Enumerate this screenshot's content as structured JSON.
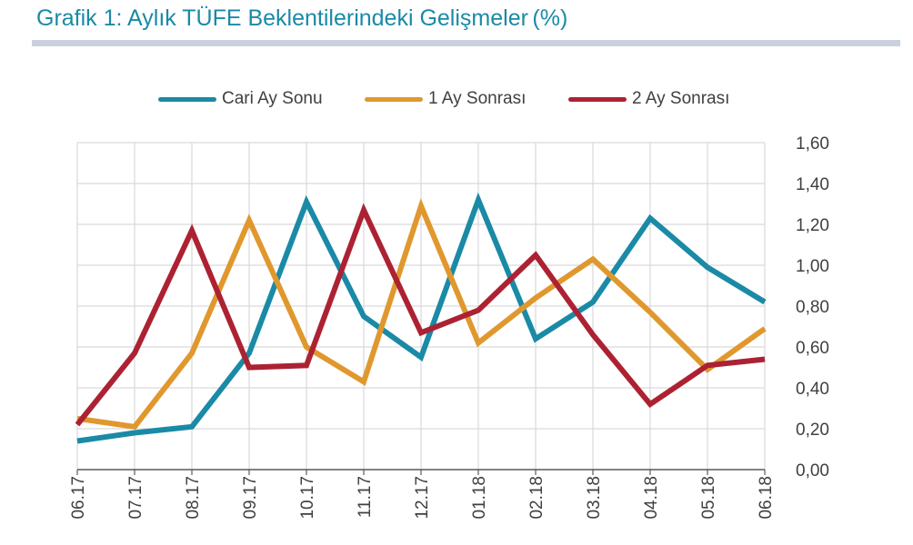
{
  "header": {
    "title_main": "Grafik 1: Aylık TÜFE Beklentilerindeki Gelişmeler",
    "title_unit": "(%)"
  },
  "chart_data": {
    "type": "line",
    "title": "Grafik 1: Aylık TÜFE Beklentilerindeki Gelişmeler (%)",
    "xlabel": "",
    "ylabel": "",
    "categories": [
      "06.17",
      "07.17",
      "08.17",
      "09.17",
      "10.17",
      "11.17",
      "12.17",
      "01.18",
      "02.18",
      "03.18",
      "04.18",
      "05.18",
      "06.18"
    ],
    "ylim": [
      0,
      1.6
    ],
    "yticks": [
      "0,00",
      "0,20",
      "0,40",
      "0,60",
      "0,80",
      "1,00",
      "1,20",
      "1,40",
      "1,60"
    ],
    "y_axis_side": "right",
    "grid": true,
    "legend_position": "top",
    "series": [
      {
        "name": "Cari Ay Sonu",
        "color": "#1a8aa6",
        "values": [
          0.14,
          0.18,
          0.21,
          0.57,
          1.31,
          0.75,
          0.55,
          1.32,
          0.64,
          0.82,
          1.23,
          0.99,
          0.82
        ]
      },
      {
        "name": "1 Ay Sonrası",
        "color": "#e0982e",
        "values": [
          0.25,
          0.21,
          0.57,
          1.22,
          0.6,
          0.43,
          1.29,
          0.62,
          0.84,
          1.03,
          0.77,
          0.49,
          0.69
        ]
      },
      {
        "name": "2 Ay Sonrası",
        "color": "#ac2233",
        "values": [
          0.22,
          0.57,
          1.17,
          0.5,
          0.51,
          1.27,
          0.67,
          0.78,
          1.05,
          0.66,
          0.32,
          0.51,
          0.54
        ]
      }
    ]
  }
}
